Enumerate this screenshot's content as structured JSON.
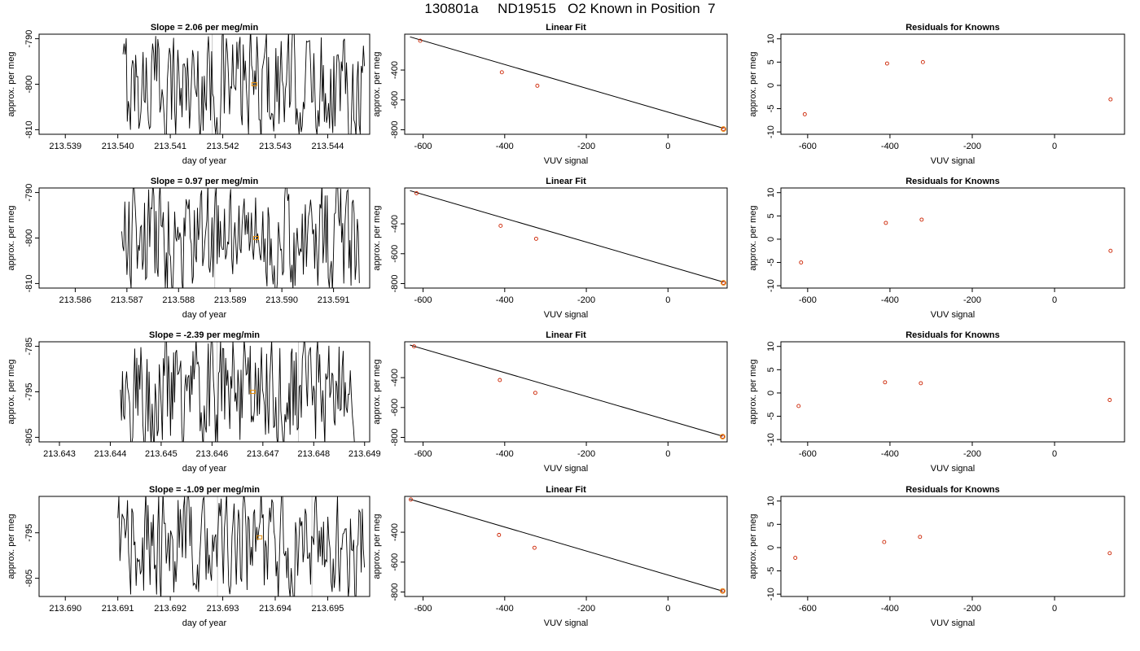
{
  "figure_title": "130801a     ND19515   O2 Known in Position  7",
  "colors": {
    "trace": "#000000",
    "frame": "#000000",
    "vline": "#c8c8c8",
    "point": "#cc2200",
    "marker": "#e8900a"
  },
  "chart_data": [
    {
      "row": 0,
      "time_panel": {
        "type": "line",
        "title": "Slope =  2.06  per meg/min",
        "xlabel": "day of year",
        "ylabel": "approx. per meg",
        "xlim": [
          213.5385,
          213.5448
        ],
        "ylim": [
          -811,
          -789
        ],
        "xticks": [
          "213.539",
          "213.540",
          "213.541",
          "213.542",
          "213.543",
          "213.544"
        ],
        "yticks": [
          "-810",
          "-800",
          "-790"
        ],
        "data_start": 213.5401,
        "data_end": 213.5447,
        "vlines": [
          213.5418
        ],
        "marker": {
          "x": 213.5426,
          "y": -800
        }
      },
      "fit_panel": {
        "type": "scatter",
        "title": "Linear Fit",
        "xlabel": "VUV signal",
        "ylabel": "approx. per meg",
        "xlim": [
          -645,
          145
        ],
        "ylim": [
          -830,
          -160
        ],
        "xticks": [
          "-600",
          "-400",
          "-200",
          "0"
        ],
        "yticks": [
          "-800",
          "-600",
          "-400"
        ],
        "points": [
          [
            -607,
            -204
          ],
          [
            -407,
            -415
          ],
          [
            -320,
            -505
          ],
          [
            136,
            -795
          ]
        ],
        "fit_line": [
          [
            -632,
            -178
          ],
          [
            136,
            -790
          ]
        ]
      },
      "resid_panel": {
        "type": "scatter",
        "title": "Residuals for Knowns",
        "xlabel": "VUV signal",
        "ylabel": "approx. per meg",
        "xlim": [
          -665,
          170
        ],
        "ylim": [
          -10.5,
          11
        ],
        "xticks": [
          "-600",
          "-400",
          "-200",
          "0"
        ],
        "yticks": [
          "-10",
          "-5",
          "0",
          "5",
          "10"
        ],
        "points": [
          [
            -607,
            -6.2
          ],
          [
            -407,
            4.7
          ],
          [
            -320,
            5.0
          ],
          [
            136,
            -3.0
          ]
        ]
      }
    },
    {
      "row": 1,
      "time_panel": {
        "type": "line",
        "title": "Slope =  0.97  per meg/min",
        "xlabel": "day of year",
        "ylabel": "approx. per meg",
        "xlim": [
          213.5853,
          213.5917
        ],
        "ylim": [
          -811,
          -789
        ],
        "xticks": [
          "213.586",
          "213.587",
          "213.588",
          "213.589",
          "213.590",
          "213.591"
        ],
        "yticks": [
          "-810",
          "-800",
          "-790"
        ],
        "data_start": 213.5869,
        "data_end": 213.5915,
        "vlines": [
          213.5887
        ],
        "marker": {
          "x": 213.5895,
          "y": -800
        }
      },
      "fit_panel": {
        "type": "scatter",
        "title": "Linear Fit",
        "xlabel": "VUV signal",
        "ylabel": "approx. per meg",
        "xlim": [
          -645,
          145
        ],
        "ylim": [
          -830,
          -160
        ],
        "xticks": [
          "-600",
          "-400",
          "-200",
          "0"
        ],
        "yticks": [
          "-800",
          "-600",
          "-400"
        ],
        "points": [
          [
            -616,
            -195
          ],
          [
            -410,
            -413
          ],
          [
            -323,
            -500
          ],
          [
            136,
            -795
          ]
        ],
        "fit_line": [
          [
            -632,
            -178
          ],
          [
            136,
            -790
          ]
        ]
      },
      "resid_panel": {
        "type": "scatter",
        "title": "Residuals for Knowns",
        "xlabel": "VUV signal",
        "ylabel": "approx. per meg",
        "xlim": [
          -665,
          170
        ],
        "ylim": [
          -10.5,
          11
        ],
        "xticks": [
          "-600",
          "-400",
          "-200",
          "0"
        ],
        "yticks": [
          "-10",
          "-5",
          "0",
          "5",
          "10"
        ],
        "points": [
          [
            -616,
            -5.0
          ],
          [
            -410,
            3.5
          ],
          [
            -323,
            4.2
          ],
          [
            136,
            -2.5
          ]
        ]
      }
    },
    {
      "row": 2,
      "time_panel": {
        "type": "line",
        "title": "Slope =  -2.39  per meg/min",
        "xlabel": "day of year",
        "ylabel": "approx. per meg",
        "xlim": [
          213.6426,
          213.6491
        ],
        "ylim": [
          -806,
          -784
        ],
        "xticks": [
          "213.643",
          "213.644",
          "213.645",
          "213.646",
          "213.647",
          "213.648",
          "213.649"
        ],
        "yticks": [
          "-805",
          "-795",
          "-785"
        ],
        "data_start": 213.6442,
        "data_end": 213.6488,
        "vlines": [
          213.6461,
          213.6477
        ],
        "marker": {
          "x": 213.6468,
          "y": -795
        }
      },
      "fit_panel": {
        "type": "scatter",
        "title": "Linear Fit",
        "xlabel": "VUV signal",
        "ylabel": "approx. per meg",
        "xlim": [
          -645,
          145
        ],
        "ylim": [
          -830,
          -160
        ],
        "xticks": [
          "-600",
          "-400",
          "-200",
          "0"
        ],
        "yticks": [
          "-800",
          "-600",
          "-400"
        ],
        "points": [
          [
            -622,
            -191
          ],
          [
            -412,
            -416
          ],
          [
            -325,
            -502
          ],
          [
            134,
            -795
          ]
        ],
        "fit_line": [
          [
            -632,
            -182
          ],
          [
            134,
            -792
          ]
        ]
      },
      "resid_panel": {
        "type": "scatter",
        "title": "Residuals for Knowns",
        "xlabel": "VUV signal",
        "ylabel": "approx. per meg",
        "xlim": [
          -665,
          170
        ],
        "ylim": [
          -10.5,
          11
        ],
        "xticks": [
          "-600",
          "-400",
          "-200",
          "0"
        ],
        "yticks": [
          "-10",
          "-5",
          "0",
          "5",
          "10"
        ],
        "points": [
          [
            -622,
            -2.8
          ],
          [
            -412,
            2.3
          ],
          [
            -325,
            2.1
          ],
          [
            134,
            -1.5
          ]
        ]
      }
    },
    {
      "row": 3,
      "time_panel": {
        "type": "line",
        "title": "Slope =  -1.09  per meg/min",
        "xlabel": "day of year",
        "ylabel": "approx. per meg",
        "xlim": [
          213.6895,
          213.6958
        ],
        "ylim": [
          -809,
          -787
        ],
        "xticks": [
          "213.690",
          "213.691",
          "213.692",
          "213.693",
          "213.694",
          "213.695"
        ],
        "yticks": [
          "-805",
          "-795"
        ],
        "data_start": 213.691,
        "data_end": 213.6957,
        "vlines": [
          213.6929,
          213.6947
        ],
        "marker": {
          "x": 213.6937,
          "y": -796
        }
      },
      "fit_panel": {
        "type": "scatter",
        "title": "Linear Fit",
        "xlabel": "VUV signal",
        "ylabel": "approx. per meg",
        "xlim": [
          -645,
          145
        ],
        "ylim": [
          -830,
          -160
        ],
        "xticks": [
          "-600",
          "-400",
          "-200",
          "0"
        ],
        "yticks": [
          "-800",
          "-600",
          "-400"
        ],
        "points": [
          [
            -630,
            -181
          ],
          [
            -414,
            -418
          ],
          [
            -327,
            -504
          ],
          [
            134,
            -793
          ]
        ],
        "fit_line": [
          [
            -632,
            -179
          ],
          [
            134,
            -794
          ]
        ]
      },
      "resid_panel": {
        "type": "scatter",
        "title": "Residuals for Knowns",
        "xlabel": "VUV signal",
        "ylabel": "approx. per meg",
        "xlim": [
          -665,
          170
        ],
        "ylim": [
          -10.5,
          11
        ],
        "xticks": [
          "-600",
          "-400",
          "-200",
          "0"
        ],
        "yticks": [
          "-10",
          "-5",
          "0",
          "5",
          "10"
        ],
        "points": [
          [
            -630,
            -2.2
          ],
          [
            -414,
            1.2
          ],
          [
            -327,
            2.3
          ],
          [
            134,
            -1.2
          ]
        ]
      }
    }
  ]
}
